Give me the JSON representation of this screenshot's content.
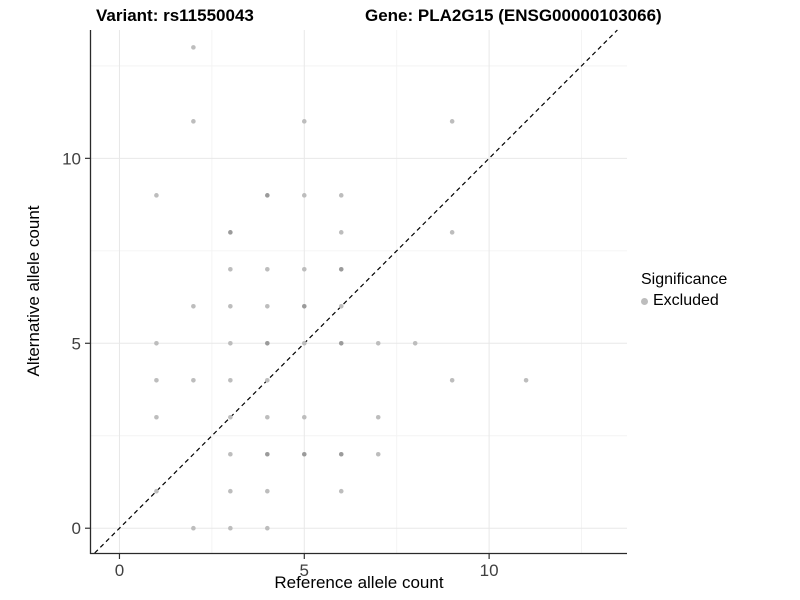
{
  "header": {
    "variant_title": "Variant: rs11550043",
    "gene_title": "Gene: PLA2G15 (ENSG00000103066)"
  },
  "axes": {
    "x_label": "Reference allele count",
    "y_label": "Alternative allele count"
  },
  "legend": {
    "title": "Significance",
    "items": [
      {
        "label": "Excluded",
        "color": "#bdbdbd"
      }
    ]
  },
  "colors": {
    "background": "#ffffff",
    "point": "#bdbdbd",
    "point_overplotted": "#9b9b9b",
    "grid_major": "#e8e8e8",
    "grid_minor": "#f3f3f3",
    "axis_line": "#2a2a2a",
    "tick_mark": "#333333",
    "tick_label": "#404040",
    "identity_line": "#000000"
  },
  "chart_data": {
    "type": "scatter",
    "title": "Variant: rs11550043   Gene: PLA2G15 (ENSG00000103066)",
    "xlabel": "Reference allele count",
    "ylabel": "Alternative allele count",
    "xlim": [
      -0.77,
      13.73
    ],
    "ylim": [
      -0.67,
      13.47
    ],
    "x_major_ticks": [
      0,
      5,
      10
    ],
    "x_tick_labels": [
      "0",
      "5",
      "10"
    ],
    "x_minor_ticks": [
      2.5,
      7.5,
      12.5
    ],
    "y_major_ticks": [
      0,
      5,
      10
    ],
    "y_tick_labels": [
      "0",
      "5",
      "10"
    ],
    "y_minor_ticks": [
      2.5,
      7.5,
      12.5
    ],
    "grid": true,
    "legend_position": "right",
    "identity_line": {
      "x1": -0.67,
      "y1": -0.67,
      "x2": 13.47,
      "y2": 13.47,
      "dashed": true
    },
    "series": [
      {
        "name": "Excluded",
        "points": [
          {
            "x": 2,
            "y": 13,
            "overplotted": false
          },
          {
            "x": 2,
            "y": 11,
            "overplotted": false
          },
          {
            "x": 5,
            "y": 11,
            "overplotted": false
          },
          {
            "x": 9,
            "y": 11,
            "overplotted": false
          },
          {
            "x": 1,
            "y": 9,
            "overplotted": false
          },
          {
            "x": 4,
            "y": 9,
            "overplotted": true
          },
          {
            "x": 5,
            "y": 9,
            "overplotted": false
          },
          {
            "x": 6,
            "y": 9,
            "overplotted": false
          },
          {
            "x": 3,
            "y": 8,
            "overplotted": true
          },
          {
            "x": 6,
            "y": 8,
            "overplotted": false
          },
          {
            "x": 9,
            "y": 8,
            "overplotted": false
          },
          {
            "x": 3,
            "y": 7,
            "overplotted": false
          },
          {
            "x": 4,
            "y": 7,
            "overplotted": false
          },
          {
            "x": 5,
            "y": 7,
            "overplotted": false
          },
          {
            "x": 6,
            "y": 7,
            "overplotted": true
          },
          {
            "x": 2,
            "y": 6,
            "overplotted": false
          },
          {
            "x": 3,
            "y": 6,
            "overplotted": false
          },
          {
            "x": 4,
            "y": 6,
            "overplotted": false
          },
          {
            "x": 5,
            "y": 6,
            "overplotted": true
          },
          {
            "x": 6,
            "y": 6,
            "overplotted": false
          },
          {
            "x": 1,
            "y": 5,
            "overplotted": false
          },
          {
            "x": 3,
            "y": 5,
            "overplotted": false
          },
          {
            "x": 4,
            "y": 5,
            "overplotted": true
          },
          {
            "x": 5,
            "y": 5,
            "overplotted": false
          },
          {
            "x": 6,
            "y": 5,
            "overplotted": true
          },
          {
            "x": 7,
            "y": 5,
            "overplotted": false
          },
          {
            "x": 8,
            "y": 5,
            "overplotted": false
          },
          {
            "x": 1,
            "y": 4,
            "overplotted": false
          },
          {
            "x": 2,
            "y": 4,
            "overplotted": false
          },
          {
            "x": 3,
            "y": 4,
            "overplotted": false
          },
          {
            "x": 4,
            "y": 4,
            "overplotted": false
          },
          {
            "x": 9,
            "y": 4,
            "overplotted": false
          },
          {
            "x": 11,
            "y": 4,
            "overplotted": false
          },
          {
            "x": 1,
            "y": 3,
            "overplotted": false
          },
          {
            "x": 3,
            "y": 3,
            "overplotted": false
          },
          {
            "x": 4,
            "y": 3,
            "overplotted": false
          },
          {
            "x": 5,
            "y": 3,
            "overplotted": false
          },
          {
            "x": 7,
            "y": 3,
            "overplotted": false
          },
          {
            "x": 3,
            "y": 2,
            "overplotted": false
          },
          {
            "x": 4,
            "y": 2,
            "overplotted": true
          },
          {
            "x": 5,
            "y": 2,
            "overplotted": true
          },
          {
            "x": 6,
            "y": 2,
            "overplotted": true
          },
          {
            "x": 7,
            "y": 2,
            "overplotted": false
          },
          {
            "x": 1,
            "y": 1,
            "overplotted": false
          },
          {
            "x": 3,
            "y": 1,
            "overplotted": false
          },
          {
            "x": 4,
            "y": 1,
            "overplotted": false
          },
          {
            "x": 6,
            "y": 1,
            "overplotted": false
          },
          {
            "x": 2,
            "y": 0,
            "overplotted": false
          },
          {
            "x": 3,
            "y": 0,
            "overplotted": false
          },
          {
            "x": 4,
            "y": 0,
            "overplotted": false
          }
        ]
      }
    ]
  }
}
